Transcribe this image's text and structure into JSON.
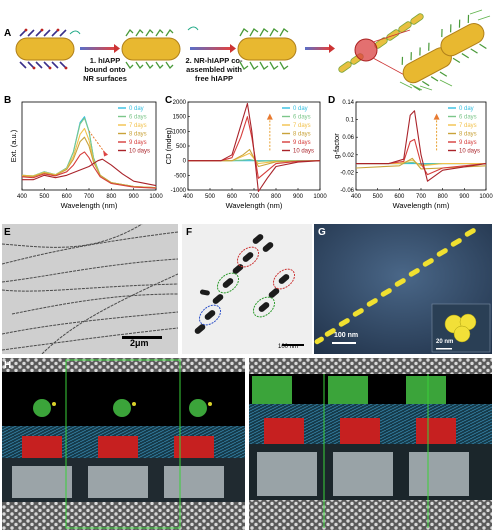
{
  "panels": {
    "a": {
      "label": "A",
      "step1": "1. hIAPP\nbound onto\nNR surfaces",
      "step2": "2. NR-hIAPP co-\nassembled with\nfree hIAPP"
    },
    "b": {
      "label": "B"
    },
    "c": {
      "label": "C"
    },
    "d": {
      "label": "D"
    },
    "e": {
      "label": "E",
      "scale": "2μm"
    },
    "f": {
      "label": "F",
      "scale": "100 nm"
    },
    "g": {
      "label": "G",
      "scale_main": "100 nm",
      "scale_inset": "20 nm"
    },
    "h": {
      "label": "H"
    }
  },
  "chart_data": [
    {
      "type": "line",
      "id": "B",
      "xlabel": "Wavelength (nm)",
      "ylabel": "Ext. (a.u.)",
      "xlim": [
        400,
        1000
      ],
      "ylim": [
        0,
        3
      ],
      "xticks": [
        400,
        500,
        600,
        700,
        800,
        900,
        1000
      ],
      "yticks": [],
      "legend": [
        "0 day",
        "6 days",
        "7 days",
        "8 days",
        "9 days",
        "10 days"
      ],
      "colors": [
        "#33bfe0",
        "#7cc68a",
        "#f2c24c",
        "#c9a33a",
        "#d63d3b",
        "#a9232a"
      ],
      "series": [
        {
          "name": "0 day",
          "x": [
            400,
            450,
            500,
            550,
            600,
            630,
            660,
            680,
            700,
            720,
            750,
            800,
            900,
            1000
          ],
          "y": [
            0.5,
            0.48,
            0.62,
            0.52,
            0.75,
            1.3,
            2.3,
            2.5,
            2.0,
            1.1,
            0.5,
            0.25,
            0.12,
            0.08
          ]
        },
        {
          "name": "6 days",
          "x": [
            400,
            450,
            500,
            550,
            600,
            630,
            660,
            680,
            700,
            720,
            750,
            800,
            900,
            1000
          ],
          "y": [
            0.5,
            0.48,
            0.62,
            0.52,
            0.75,
            1.3,
            2.25,
            2.45,
            2.0,
            1.1,
            0.5,
            0.25,
            0.12,
            0.08
          ]
        },
        {
          "name": "7 days",
          "x": [
            400,
            450,
            500,
            550,
            600,
            630,
            660,
            680,
            700,
            720,
            750,
            800,
            900,
            1000
          ],
          "y": [
            0.5,
            0.48,
            0.6,
            0.52,
            0.72,
            1.15,
            1.9,
            2.1,
            1.7,
            1.0,
            0.5,
            0.25,
            0.12,
            0.08
          ]
        },
        {
          "name": "8 days",
          "x": [
            400,
            450,
            500,
            550,
            600,
            630,
            660,
            680,
            700,
            720,
            750,
            800,
            900,
            1000
          ],
          "y": [
            0.48,
            0.46,
            0.58,
            0.5,
            0.7,
            1.05,
            1.65,
            1.8,
            1.5,
            0.95,
            0.5,
            0.25,
            0.12,
            0.08
          ]
        },
        {
          "name": "9 days",
          "x": [
            400,
            450,
            500,
            550,
            600,
            630,
            660,
            680,
            700,
            720,
            750,
            800,
            900,
            1000
          ],
          "y": [
            0.45,
            0.42,
            0.55,
            0.48,
            0.62,
            0.85,
            1.2,
            1.3,
            1.1,
            0.8,
            0.45,
            0.22,
            0.1,
            0.06
          ]
        },
        {
          "name": "10 days",
          "x": [
            400,
            450,
            500,
            550,
            600,
            650,
            700,
            740,
            760,
            800,
            850,
            900,
            1000
          ],
          "y": [
            0.35,
            0.35,
            0.5,
            0.42,
            0.5,
            0.65,
            0.8,
            1.0,
            1.05,
            0.85,
            0.55,
            0.3,
            0.15
          ]
        }
      ]
    },
    {
      "type": "line",
      "id": "C",
      "xlabel": "Wavelength (nm)",
      "ylabel": "CD (mdeg)",
      "xlim": [
        400,
        1000
      ],
      "ylim": [
        -1000,
        2000
      ],
      "xticks": [
        400,
        500,
        600,
        700,
        800,
        900,
        1000
      ],
      "yticks": [
        -1000,
        -500,
        0,
        500,
        1000,
        1500,
        2000
      ],
      "legend": [
        "0 day",
        "6 days",
        "7 days",
        "8 days",
        "9 days",
        "10 days"
      ],
      "colors": [
        "#33bfe0",
        "#7cc68a",
        "#f2c24c",
        "#c9a33a",
        "#d63d3b",
        "#a9232a"
      ],
      "series": [
        {
          "name": "0 day",
          "x": [
            400,
            600,
            700,
            800,
            1000
          ],
          "y": [
            0,
            0,
            0,
            0,
            0
          ]
        },
        {
          "name": "6 days",
          "x": [
            400,
            600,
            650,
            680,
            720,
            800,
            1000
          ],
          "y": [
            0,
            0,
            20,
            40,
            -20,
            0,
            0
          ]
        },
        {
          "name": "7 days",
          "x": [
            400,
            600,
            650,
            680,
            720,
            800,
            1000
          ],
          "y": [
            0,
            0,
            150,
            250,
            -100,
            -20,
            0
          ]
        },
        {
          "name": "8 days",
          "x": [
            400,
            600,
            650,
            680,
            720,
            800,
            1000
          ],
          "y": [
            0,
            0,
            200,
            380,
            -200,
            -40,
            0
          ]
        },
        {
          "name": "9 days",
          "x": [
            400,
            550,
            600,
            640,
            670,
            690,
            720,
            760,
            800,
            900,
            1000
          ],
          "y": [
            0,
            0,
            100,
            800,
            1500,
            800,
            -600,
            -350,
            -100,
            -20,
            0
          ]
        },
        {
          "name": "10 days",
          "x": [
            400,
            550,
            600,
            640,
            670,
            690,
            720,
            760,
            800,
            900,
            1000
          ],
          "y": [
            0,
            0,
            200,
            1200,
            1950,
            1000,
            -1050,
            -600,
            -200,
            -50,
            0
          ]
        }
      ]
    },
    {
      "type": "line",
      "id": "D",
      "xlabel": "Wavelength (nm)",
      "ylabel": "g-factor",
      "xlim": [
        400,
        1000
      ],
      "ylim": [
        -0.06,
        0.14
      ],
      "xticks": [
        400,
        500,
        600,
        700,
        800,
        900,
        1000
      ],
      "yticks": [
        -0.06,
        -0.02,
        0.02,
        0.06,
        0.1,
        0.14
      ],
      "legend": [
        "0 day",
        "6 days",
        "7 days",
        "8 days",
        "9 days",
        "10 days"
      ],
      "colors": [
        "#33bfe0",
        "#7cc68a",
        "#f2c24c",
        "#c9a33a",
        "#d63d3b",
        "#a9232a"
      ],
      "series": [
        {
          "name": "0 day",
          "x": [
            400,
            1000
          ],
          "y": [
            0,
            0
          ]
        },
        {
          "name": "6 days",
          "x": [
            400,
            600,
            660,
            700,
            800,
            1000
          ],
          "y": [
            0,
            0,
            0.003,
            -0.002,
            0,
            0
          ]
        },
        {
          "name": "7 days",
          "x": [
            400,
            600,
            660,
            700,
            800,
            1000
          ],
          "y": [
            0,
            0,
            0.008,
            -0.005,
            0,
            0
          ]
        },
        {
          "name": "8 days",
          "x": [
            400,
            600,
            660,
            700,
            800,
            1000
          ],
          "y": [
            -0.01,
            -0.005,
            0.012,
            -0.012,
            -0.01,
            -0.005
          ]
        },
        {
          "name": "9 days",
          "x": [
            400,
            550,
            620,
            650,
            670,
            700,
            730,
            800,
            1000
          ],
          "y": [
            0,
            0,
            0.005,
            0.05,
            0.055,
            0.0,
            -0.025,
            -0.01,
            0
          ]
        },
        {
          "name": "10 days",
          "x": [
            400,
            550,
            620,
            650,
            670,
            700,
            730,
            800,
            1000
          ],
          "y": [
            0,
            0,
            0.01,
            0.11,
            0.12,
            0.02,
            -0.04,
            -0.015,
            0
          ]
        }
      ]
    }
  ]
}
